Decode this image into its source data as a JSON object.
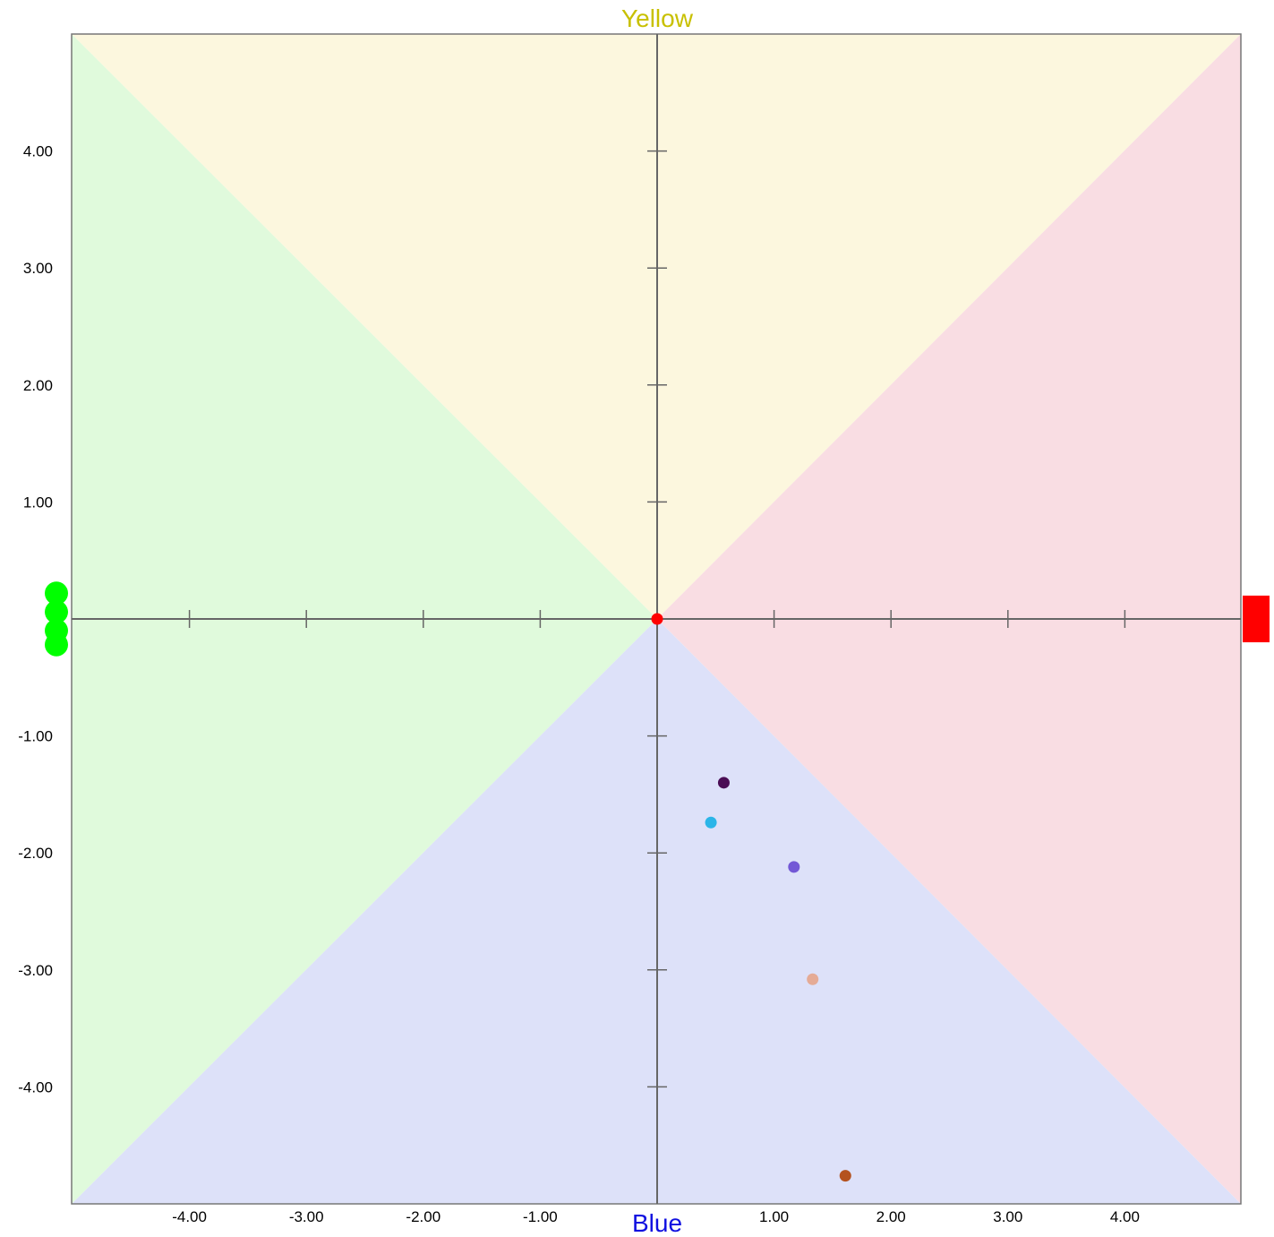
{
  "chart_data": {
    "type": "scatter",
    "title": "",
    "xlim": [
      -5,
      5
    ],
    "ylim": [
      -5,
      5
    ],
    "grid": false,
    "x_ticks": [
      {
        "value": -4,
        "label": "-4.00"
      },
      {
        "value": -3,
        "label": "-3.00"
      },
      {
        "value": -2,
        "label": "-2.00"
      },
      {
        "value": -1,
        "label": "-1.00"
      },
      {
        "value": 1,
        "label": "1.00"
      },
      {
        "value": 2,
        "label": "2.00"
      },
      {
        "value": 3,
        "label": "3.00"
      },
      {
        "value": 4,
        "label": "4.00"
      }
    ],
    "y_ticks": [
      {
        "value": 4,
        "label": "4.00"
      },
      {
        "value": 3,
        "label": "3.00"
      },
      {
        "value": 2,
        "label": "2.00"
      },
      {
        "value": 1,
        "label": "1.00"
      },
      {
        "value": -1,
        "label": "-1.00"
      },
      {
        "value": -2,
        "label": "-2.00"
      },
      {
        "value": -3,
        "label": "-3.00"
      },
      {
        "value": -4,
        "label": "-4.00"
      }
    ],
    "axis_names": {
      "top": {
        "label": "Yellow",
        "color": "#c8c000"
      },
      "bottom": {
        "label": "Blue",
        "color": "#1010e0"
      }
    },
    "region_colors": {
      "top": "#fcf7de",
      "right": "#f9dde3",
      "bottom": "#dde1f9",
      "left": "#e0fadc"
    },
    "axis_color": "#666666",
    "frame_color": "#777777",
    "points": [
      {
        "x": 0.0,
        "y": 0.0,
        "color": "#ff0000"
      },
      {
        "x": 0.57,
        "y": -1.4,
        "color": "#4a0d55"
      },
      {
        "x": 0.46,
        "y": -1.74,
        "color": "#2bb5e8"
      },
      {
        "x": 1.17,
        "y": -2.12,
        "color": "#7358d6"
      },
      {
        "x": 1.33,
        "y": -3.08,
        "color": "#e5ab96"
      },
      {
        "x": 1.61,
        "y": -4.76,
        "color": "#b4521f"
      }
    ],
    "edge_markers": {
      "left": {
        "color": "#00ff00",
        "y_values": [
          0.22,
          0.06,
          -0.1,
          -0.22
        ]
      },
      "right": {
        "color": "#ff0000",
        "y_values": [
          0.1,
          0.0,
          -0.1
        ]
      }
    }
  }
}
